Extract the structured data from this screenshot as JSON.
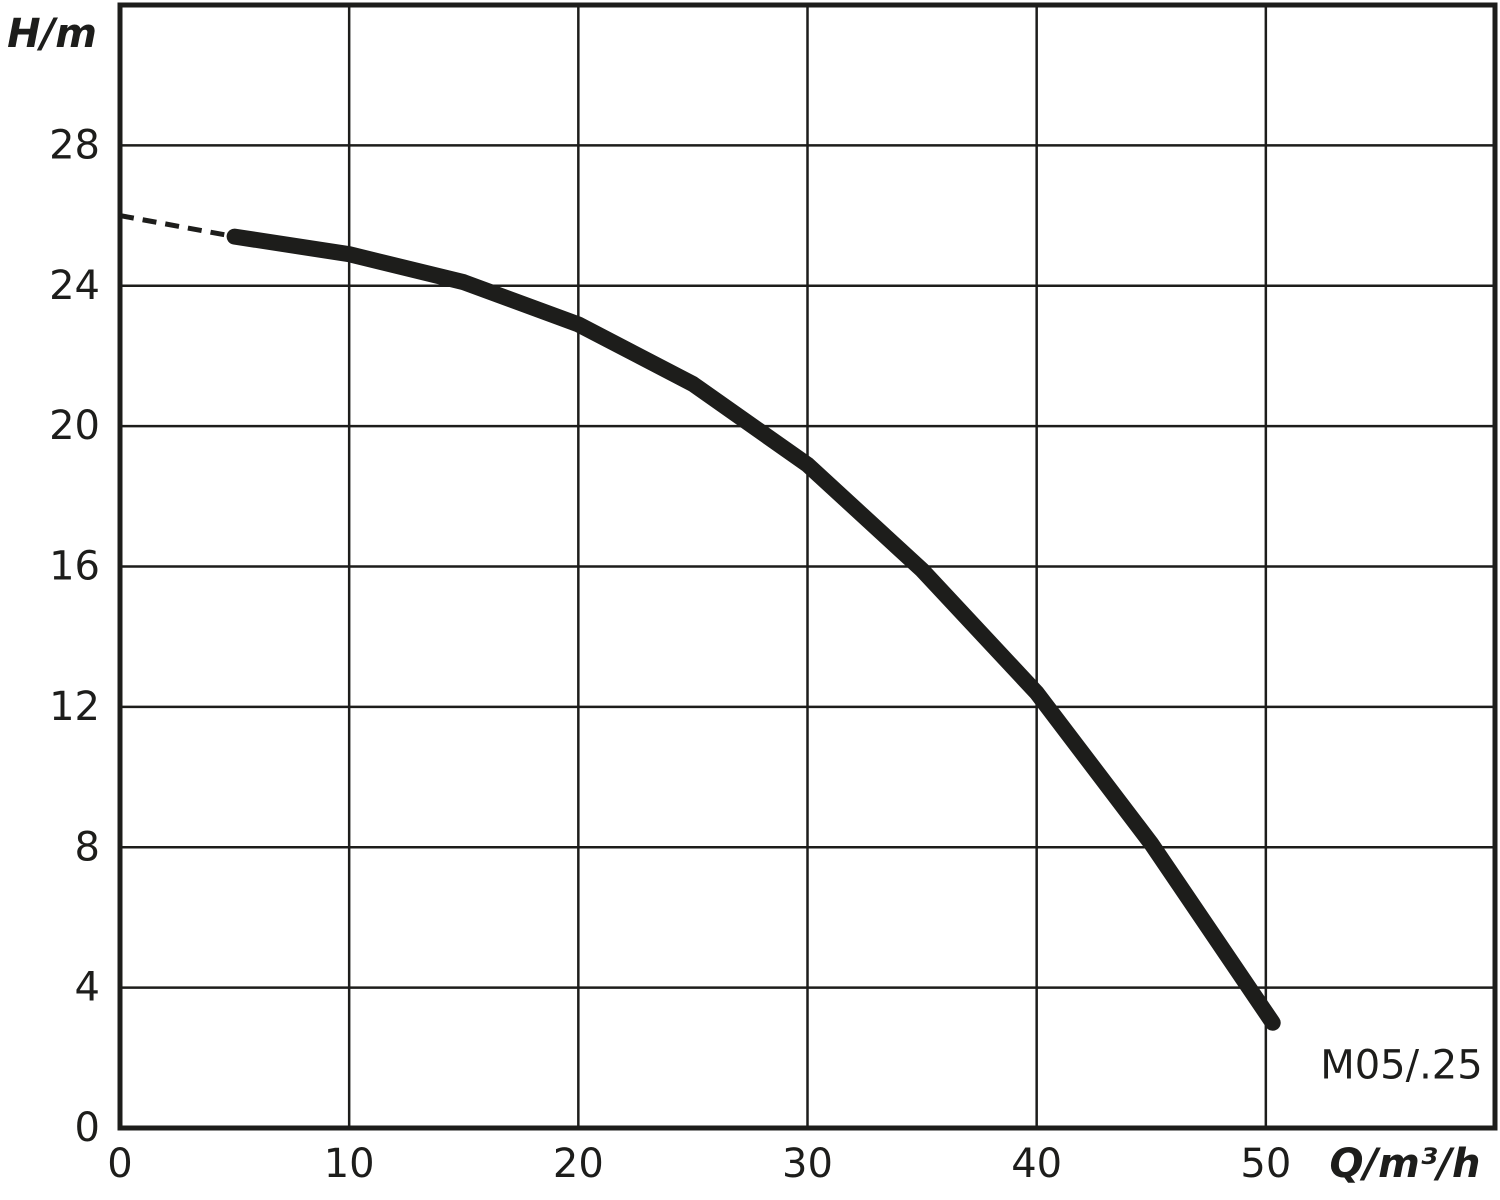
{
  "chart_data": {
    "type": "line",
    "x_label": "Q/m³/h",
    "y_label": "H/m",
    "xlim": [
      0,
      60
    ],
    "ylim": [
      0,
      32
    ],
    "xticks": [
      0,
      10,
      20,
      30,
      40,
      50
    ],
    "yticks": [
      0,
      4,
      8,
      12,
      16,
      20,
      24,
      28
    ],
    "grid": true,
    "series": [
      {
        "color": "#1d1d1b",
        "style": "dashed",
        "x": [
          0,
          5
        ],
        "values": [
          26,
          25.4
        ]
      },
      {
        "name": "M05/.25",
        "color": "#1d1d1b",
        "style": "solid",
        "x": [
          5,
          10,
          15,
          20,
          25,
          30,
          35,
          40,
          45,
          50.3
        ],
        "values": [
          25.4,
          24.9,
          24.1,
          22.9,
          21.2,
          18.9,
          15.9,
          12.4,
          8.1,
          3.0
        ]
      }
    ]
  }
}
